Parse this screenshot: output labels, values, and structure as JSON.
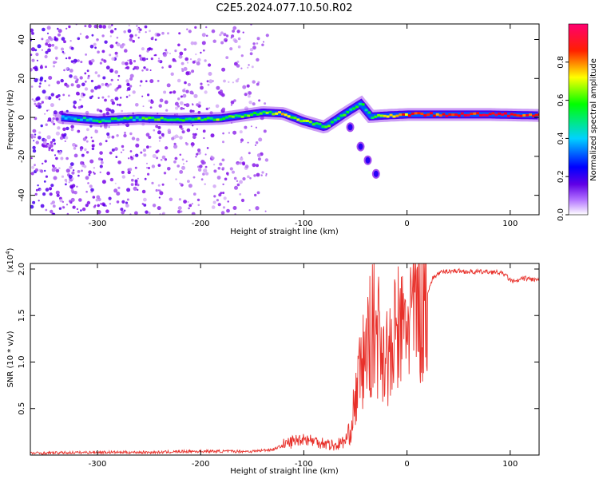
{
  "figure_title": "C2E5.2024.077.10.50.R02",
  "chart_data": [
    {
      "type": "heatmap",
      "xlabel": "Height of straight line (km)",
      "ylabel": "Frequency (Hz)",
      "xlim": [
        -365,
        128
      ],
      "ylim": [
        -50,
        48
      ],
      "x_ticks": [
        -300,
        -200,
        -100,
        0,
        100
      ],
      "x_tick_labels": [
        "-300",
        "-200",
        "-100",
        "0",
        "100"
      ],
      "y_ticks": [
        -40,
        -20,
        0,
        20,
        40
      ],
      "y_tick_labels": [
        "-40",
        "-20",
        "0",
        "20",
        "40"
      ],
      "colorbar": {
        "label": "Normalized spectral amplitude",
        "range": [
          0,
          1
        ],
        "ticks": [
          0.0,
          0.2,
          0.4,
          0.6,
          0.8
        ],
        "tick_labels": [
          "0.0",
          "0.2",
          "0.4",
          "0.6",
          "0.8"
        ],
        "colormap": [
          "#ffffff",
          "#7a00e6",
          "#0000ff",
          "#00c8ff",
          "#00ff00",
          "#ffff00",
          "#ff0000",
          "#ff0066"
        ]
      },
      "main_ridge": [
        {
          "x": -335,
          "y": 0.0,
          "amp": 0.45
        },
        {
          "x": -300,
          "y": -1.5,
          "amp": 0.5
        },
        {
          "x": -260,
          "y": -0.5,
          "amp": 0.55
        },
        {
          "x": -220,
          "y": -1.0,
          "amp": 0.55
        },
        {
          "x": -180,
          "y": -0.5,
          "amp": 0.6
        },
        {
          "x": -140,
          "y": 2.5,
          "amp": 0.6
        },
        {
          "x": -120,
          "y": 2.0,
          "amp": 0.7
        },
        {
          "x": -100,
          "y": -2.0,
          "amp": 0.65
        },
        {
          "x": -80,
          "y": -5.0,
          "amp": 0.55
        },
        {
          "x": -60,
          "y": 2.0,
          "amp": 0.55
        },
        {
          "x": -45,
          "y": 7.0,
          "amp": 0.5
        },
        {
          "x": -35,
          "y": 0.5,
          "amp": 0.6
        },
        {
          "x": -20,
          "y": 1.0,
          "amp": 0.7
        },
        {
          "x": 0,
          "y": 1.5,
          "amp": 0.8
        },
        {
          "x": 40,
          "y": 1.5,
          "amp": 0.85
        },
        {
          "x": 80,
          "y": 1.5,
          "amp": 0.9
        },
        {
          "x": 128,
          "y": 1.0,
          "amp": 0.85
        }
      ],
      "secondary_branch": [
        {
          "x": -55,
          "y": -5
        },
        {
          "x": -45,
          "y": -15
        },
        {
          "x": -38,
          "y": -22
        },
        {
          "x": -30,
          "y": -29
        }
      ]
    },
    {
      "type": "line",
      "xlabel": "Height of straight line (km)",
      "ylabel": "SNR (10 * v/v)",
      "y_multiplier_label": "(x10",
      "y_multiplier_exponent": "4",
      "y_multiplier_close": ")",
      "xlim": [
        -365,
        128
      ],
      "ylim": [
        0,
        20600
      ],
      "x_ticks": [
        -300,
        -200,
        -100,
        0,
        100
      ],
      "x_tick_labels": [
        "-300",
        "-200",
        "-100",
        "0",
        "100"
      ],
      "y_ticks": [
        5000,
        10000,
        15000,
        20000
      ],
      "y_tick_labels": [
        "0.5",
        "1.0",
        "1.5",
        "2.0"
      ],
      "line_color": "#e8302a",
      "series": [
        {
          "x": [
            -365,
            -330,
            -300,
            -270,
            -240,
            -210,
            -180,
            -150,
            -130,
            -110,
            -100,
            -90,
            -80,
            -70,
            -60,
            -55,
            -50,
            -45,
            -40,
            -35,
            -30,
            -25,
            -20,
            -15,
            -10,
            -5,
            0,
            5,
            10,
            15,
            20,
            25,
            30,
            40,
            50,
            60,
            70,
            80,
            90,
            95,
            100,
            105,
            110,
            115,
            120,
            128
          ],
          "values": [
            200,
            250,
            300,
            300,
            300,
            400,
            400,
            400,
            600,
            1500,
            1800,
            1500,
            1300,
            1000,
            1500,
            2500,
            6000,
            9000,
            11000,
            13000,
            14000,
            12000,
            11000,
            10000,
            14000,
            13000,
            14500,
            15500,
            16000,
            16500,
            17500,
            19000,
            19500,
            19800,
            19800,
            19700,
            19700,
            19700,
            19600,
            19400,
            18800,
            18600,
            18900,
            19000,
            18900,
            18800
          ]
        }
      ]
    }
  ]
}
